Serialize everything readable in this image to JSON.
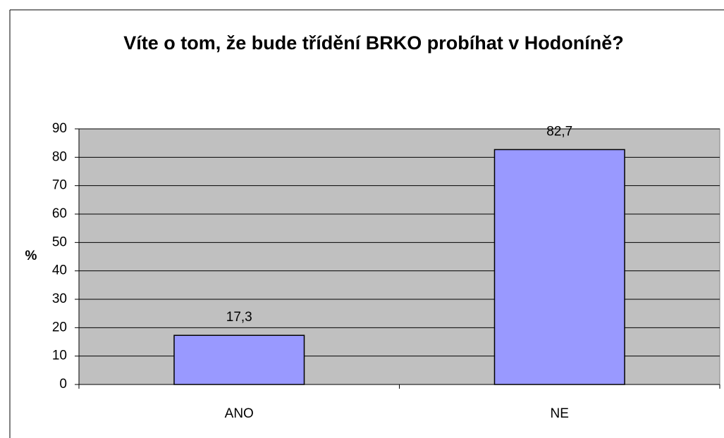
{
  "chart_data": {
    "type": "bar",
    "title": "Víte o tom, že bude třídění BRKO probíhat v Hodoníně?",
    "y_label": "%",
    "categories": [
      "ANO",
      "NE"
    ],
    "values": [
      17.3,
      82.7
    ],
    "value_labels": [
      "17,3",
      "82,7"
    ],
    "color": "#9999ff",
    "ylim": [
      0,
      90
    ],
    "yticks": [
      0,
      10,
      20,
      30,
      40,
      50,
      60,
      70,
      80,
      90
    ],
    "grid": true
  }
}
